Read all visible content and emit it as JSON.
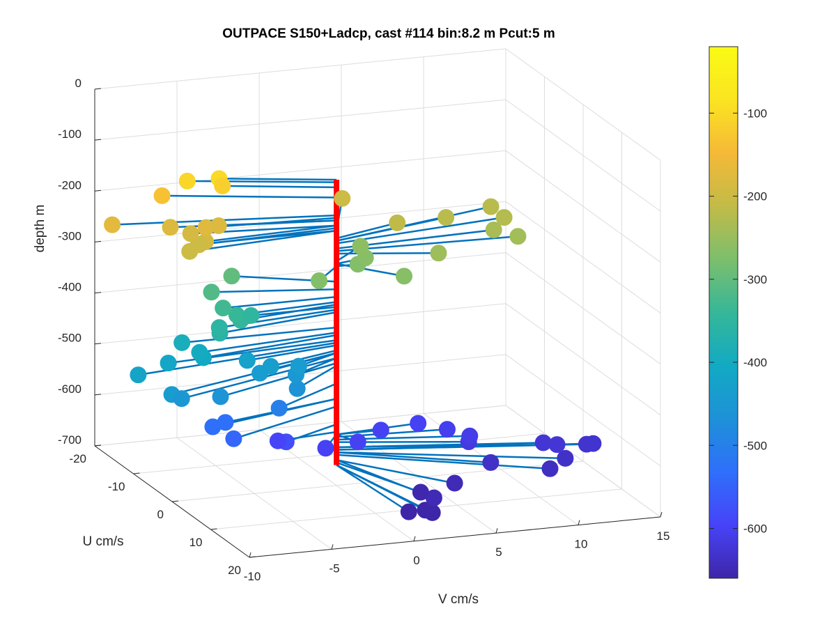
{
  "chart_data": {
    "type": "scatter3d",
    "title": "OUTPACE S150+Ladcp, cast #114 bin:8.2 m  Pcut:5 m",
    "xlabel": "V cm/s",
    "ylabel": "U cm/s",
    "zlabel": "depth m",
    "xlim": [
      -10,
      15
    ],
    "ylim": [
      -20,
      20
    ],
    "zlim": [
      -700,
      0
    ],
    "x_ticks": [
      "-10",
      "-5",
      "0",
      "5",
      "10",
      "15"
    ],
    "y_ticks": [
      "-20",
      "-10",
      "0",
      "10",
      "20"
    ],
    "z_ticks": [
      "0",
      "-100",
      "-200",
      "-300",
      "-400",
      "-500",
      "-600",
      "-700"
    ],
    "grid": true,
    "colorbar": {
      "colormap": "parula",
      "range": [
        -660,
        -20
      ],
      "ticks": [
        "-100",
        "-200",
        "-300",
        "-400",
        "-500",
        "-600"
      ],
      "colors": [
        "#3e26a8",
        "#4743f8",
        "#2f6ffb",
        "#1e91d8",
        "#12aac3",
        "#36b798",
        "#7cbf6c",
        "#c2bb48",
        "#f5b937",
        "#fbe421",
        "#f9fb14"
      ]
    },
    "line_color": "#0072bd",
    "center_line_color": "#ff0000",
    "points": [
      {
        "v": -6.2,
        "u": -4,
        "z": -100
      },
      {
        "v": -7.9,
        "u": -5,
        "z": -105
      },
      {
        "v": -6.0,
        "u": -4,
        "z": -115
      },
      {
        "v": -9.2,
        "u": -6,
        "z": -135
      },
      {
        "v": -12.7,
        "u": -4,
        "z": -170
      },
      {
        "v": -9.4,
        "u": -3,
        "z": -180
      },
      {
        "v": -7.7,
        "u": -1,
        "z": -175
      },
      {
        "v": -8.4,
        "u": -2,
        "z": -190
      },
      {
        "v": -8.2,
        "u": 1,
        "z": -190
      },
      {
        "v": -8.6,
        "u": 1,
        "z": -195
      },
      {
        "v": -6.7,
        "u": -2,
        "z": -180
      },
      {
        "v": -8.4,
        "u": 0,
        "z": -200
      },
      {
        "v": -9.4,
        "u": 2,
        "z": -200
      },
      {
        "v": 2.7,
        "u": -10,
        "z": -200
      },
      {
        "v": 4.4,
        "u": -3,
        "z": -215
      },
      {
        "v": 7.6,
        "u": -4,
        "z": -220
      },
      {
        "v": 10.8,
        "u": -6,
        "z": -220
      },
      {
        "v": 10.9,
        "u": -3,
        "z": -225
      },
      {
        "v": 9.8,
        "u": -1,
        "z": -235
      },
      {
        "v": 10.8,
        "u": 1,
        "z": -240
      },
      {
        "v": 5.5,
        "u": 3,
        "z": -245
      },
      {
        "v": 2.4,
        "u": -4,
        "z": -260
      },
      {
        "v": 2.0,
        "u": -1,
        "z": -265
      },
      {
        "v": 2.7,
        "u": 6,
        "z": -265
      },
      {
        "v": 1.3,
        "u": 0,
        "z": -270
      },
      {
        "v": -2.0,
        "u": 4,
        "z": -270
      },
      {
        "v": -5.2,
        "u": -5,
        "z": -300
      },
      {
        "v": -6.9,
        "u": -3,
        "z": -315
      },
      {
        "v": -6.9,
        "u": 0,
        "z": -330
      },
      {
        "v": -6.3,
        "u": 1,
        "z": -340
      },
      {
        "v": -6.3,
        "u": 2,
        "z": -345
      },
      {
        "v": -5.2,
        "u": 0,
        "z": -350
      },
      {
        "v": -7.8,
        "u": 3,
        "z": -360
      },
      {
        "v": -7.6,
        "u": 2,
        "z": -355
      },
      {
        "v": -9.4,
        "u": 0,
        "z": -390
      },
      {
        "v": -8.8,
        "u": 2,
        "z": -400
      },
      {
        "v": -8.8,
        "u": 3,
        "z": -405
      },
      {
        "v": -10.7,
        "u": 2,
        "z": -415
      },
      {
        "v": -13.0,
        "u": 4,
        "z": -420
      },
      {
        "v": -5.9,
        "u": 2,
        "z": -425
      },
      {
        "v": -5.6,
        "u": 4,
        "z": -440
      },
      {
        "v": -11.9,
        "u": 8,
        "z": -440
      },
      {
        "v": -11.3,
        "u": 8,
        "z": -450
      },
      {
        "v": -8.7,
        "u": 7,
        "z": -460
      },
      {
        "v": -4.7,
        "u": 3,
        "z": -435
      },
      {
        "v": -3.0,
        "u": 3,
        "z": -440
      },
      {
        "v": -3.4,
        "u": 4,
        "z": -450
      },
      {
        "v": -3.8,
        "u": 6,
        "z": -465
      },
      {
        "v": -4.9,
        "u": 6,
        "z": -500
      },
      {
        "v": -7.7,
        "u": 4,
        "z": -530
      },
      {
        "v": -8.7,
        "u": 5,
        "z": -530
      },
      {
        "v": -7.9,
        "u": 7,
        "z": -545
      },
      {
        "v": -4.0,
        "u": 4,
        "z": -580
      },
      {
        "v": -3.8,
        "u": 1,
        "z": -595
      },
      {
        "v": -1.6,
        "u": 4,
        "z": -600
      },
      {
        "v": 0.6,
        "u": 3,
        "z": -600
      },
      {
        "v": 2.7,
        "u": 0,
        "z": -600
      },
      {
        "v": 5.2,
        "u": -1,
        "z": -600
      },
      {
        "v": 6.5,
        "u": 1,
        "z": -605
      },
      {
        "v": 7.4,
        "u": 3,
        "z": -610
      },
      {
        "v": 7.1,
        "u": 4,
        "z": -615
      },
      {
        "v": 11.4,
        "u": 5,
        "z": -625
      },
      {
        "v": 12.0,
        "u": 6,
        "z": -625
      },
      {
        "v": 13.8,
        "u": 6,
        "z": -630
      },
      {
        "v": 14.2,
        "u": 6,
        "z": -630
      },
      {
        "v": 11.8,
        "u": 9,
        "z": -635
      },
      {
        "v": 7.5,
        "u": 8,
        "z": -635
      },
      {
        "v": 10.4,
        "u": 11,
        "z": -640
      },
      {
        "v": 4.6,
        "u": 11,
        "z": -650
      },
      {
        "v": 2.3,
        "u": 12,
        "z": -655
      },
      {
        "v": 2.4,
        "u": 15,
        "z": -650
      },
      {
        "v": 1.4,
        "u": 17,
        "z": -660
      },
      {
        "v": 1.6,
        "u": 18,
        "z": -660
      },
      {
        "v": 0.4,
        "u": 17,
        "z": -660
      }
    ]
  }
}
